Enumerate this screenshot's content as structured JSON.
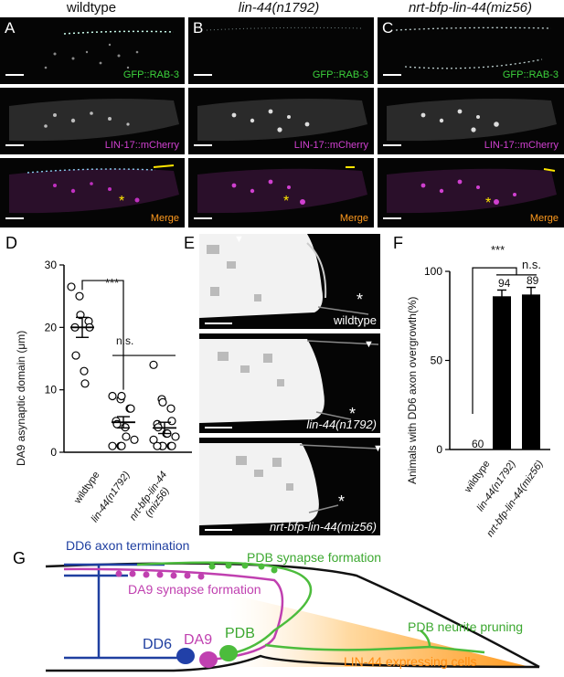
{
  "columns": {
    "wildtype": "wildtype",
    "lin44": "lin-44(n1792)",
    "nrt": "nrt-bfp-lin-44(miz56)"
  },
  "panel_letters": {
    "a": "A",
    "b": "B",
    "c": "C",
    "d": "D",
    "e": "E",
    "f": "F",
    "g": "G"
  },
  "channels": {
    "gfp": "GFP::RAB-3",
    "mcherry": "LIN-17::mCherry",
    "merge": "Merge"
  },
  "colors": {
    "green": "#3cd23c",
    "magenta": "#d040d0",
    "orange": "#ff9a1e",
    "yellow": "#ffe600",
    "blue": "#1f3fa0"
  },
  "panel_e": {
    "labels": [
      "wildtype",
      "lin-44(n1792)",
      "nrt-bfp-lin-44(miz56)"
    ],
    "marker": "*",
    "arrow": "▼"
  },
  "chart_d": {
    "ylabel": "DA9 asynaptic domain (μm)",
    "yticks": [
      "0",
      "10",
      "20",
      "30"
    ],
    "categories": [
      "wildtype",
      "lin-44(n1792)",
      "nrt-bfp-lin-44\n(miz56)"
    ],
    "sig1": "***",
    "sig2": "n.s."
  },
  "chart_f": {
    "ylabel": "Animals with DD6 axon overgrowth(%)",
    "yticks": [
      "0",
      "50",
      "100"
    ],
    "categories": [
      "wildtype",
      "lin-44(n1792)",
      "nrt-bfp-lin-44(miz56)"
    ],
    "counts": [
      "60",
      "94",
      "89"
    ],
    "sig1": "***",
    "sig2": "n.s."
  },
  "chart_data": [
    {
      "type": "scatter",
      "ylabel": "DA9 asynaptic domain (μm)",
      "ylim": [
        0,
        30
      ],
      "categories": [
        "wildtype",
        "lin-44(n1792)",
        "nrt-bfp-lin-44(miz56)"
      ],
      "series": [
        {
          "name": "wildtype",
          "values": [
            26.5,
            25,
            22,
            21,
            20,
            20,
            15.5,
            13,
            11
          ]
        },
        {
          "name": "lin-44(n1792)",
          "values": [
            9,
            8.5,
            9,
            7,
            7,
            5,
            4.5,
            4,
            2.5,
            2,
            1,
            1,
            1
          ]
        },
        {
          "name": "nrt-bfp-lin-44(miz56)",
          "values": [
            14,
            8.5,
            8,
            7,
            5,
            4.5,
            4,
            3,
            3,
            2.5,
            2,
            1,
            1,
            1,
            1,
            1
          ]
        }
      ],
      "means": [
        20,
        4.8,
        3.9
      ],
      "sem": [
        1.6,
        0.9,
        0.9
      ]
    },
    {
      "type": "bar",
      "ylabel": "Animals with DD6 axon overgrowth(%)",
      "ylim": [
        0,
        100
      ],
      "categories": [
        "wildtype",
        "lin-44(n1792)",
        "nrt-bfp-lin-44(miz56)"
      ],
      "values": [
        0,
        86,
        87
      ],
      "errors": [
        0,
        3.5,
        4
      ]
    }
  ],
  "schematic": {
    "dd6_term": "DD6 axon termination",
    "pdb_syn": "PDB synapse formation",
    "da9_syn": "DA9 synapse formation",
    "pdb_prune": "PDB neurite pruning",
    "lin44_cells": "LIN-44 expressing cells",
    "dd6": "DD6",
    "da9": "DA9",
    "pdb": "PDB"
  }
}
